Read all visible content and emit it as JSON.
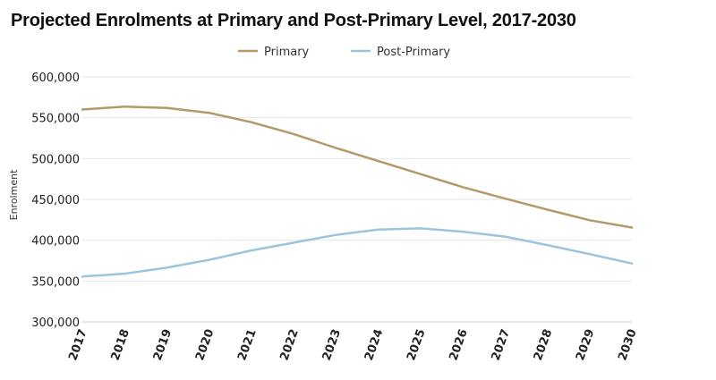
{
  "chart_data": {
    "type": "line",
    "title": "Projected Enrolments at Primary and Post-Primary Level, 2017-2030",
    "xlabel": "",
    "ylabel": "Enrolment",
    "x": [
      "2017",
      "2018",
      "2019",
      "2020",
      "2021",
      "2022",
      "2023",
      "2024",
      "2025",
      "2026",
      "2027",
      "2028",
      "2029",
      "2030"
    ],
    "ylim": [
      300000,
      600000
    ],
    "yticks": [
      300000,
      350000,
      400000,
      450000,
      500000,
      550000,
      600000
    ],
    "ytick_labels": [
      "300,000",
      "350,000",
      "400,000",
      "450,000",
      "500,000",
      "550,000",
      "600,000"
    ],
    "grid": true,
    "legend_position": "top-center",
    "series": [
      {
        "name": "Primary",
        "color": "#b39a68",
        "values": [
          560000,
          563500,
          562000,
          556000,
          544500,
          530000,
          513000,
          497000,
          481000,
          465000,
          451000,
          437500,
          424500,
          415500
        ]
      },
      {
        "name": "Post-Primary",
        "color": "#9bc4dd",
        "values": [
          355500,
          359000,
          366500,
          376000,
          387500,
          397000,
          406500,
          413000,
          414500,
          410500,
          404500,
          394000,
          383000,
          371500
        ]
      }
    ]
  }
}
